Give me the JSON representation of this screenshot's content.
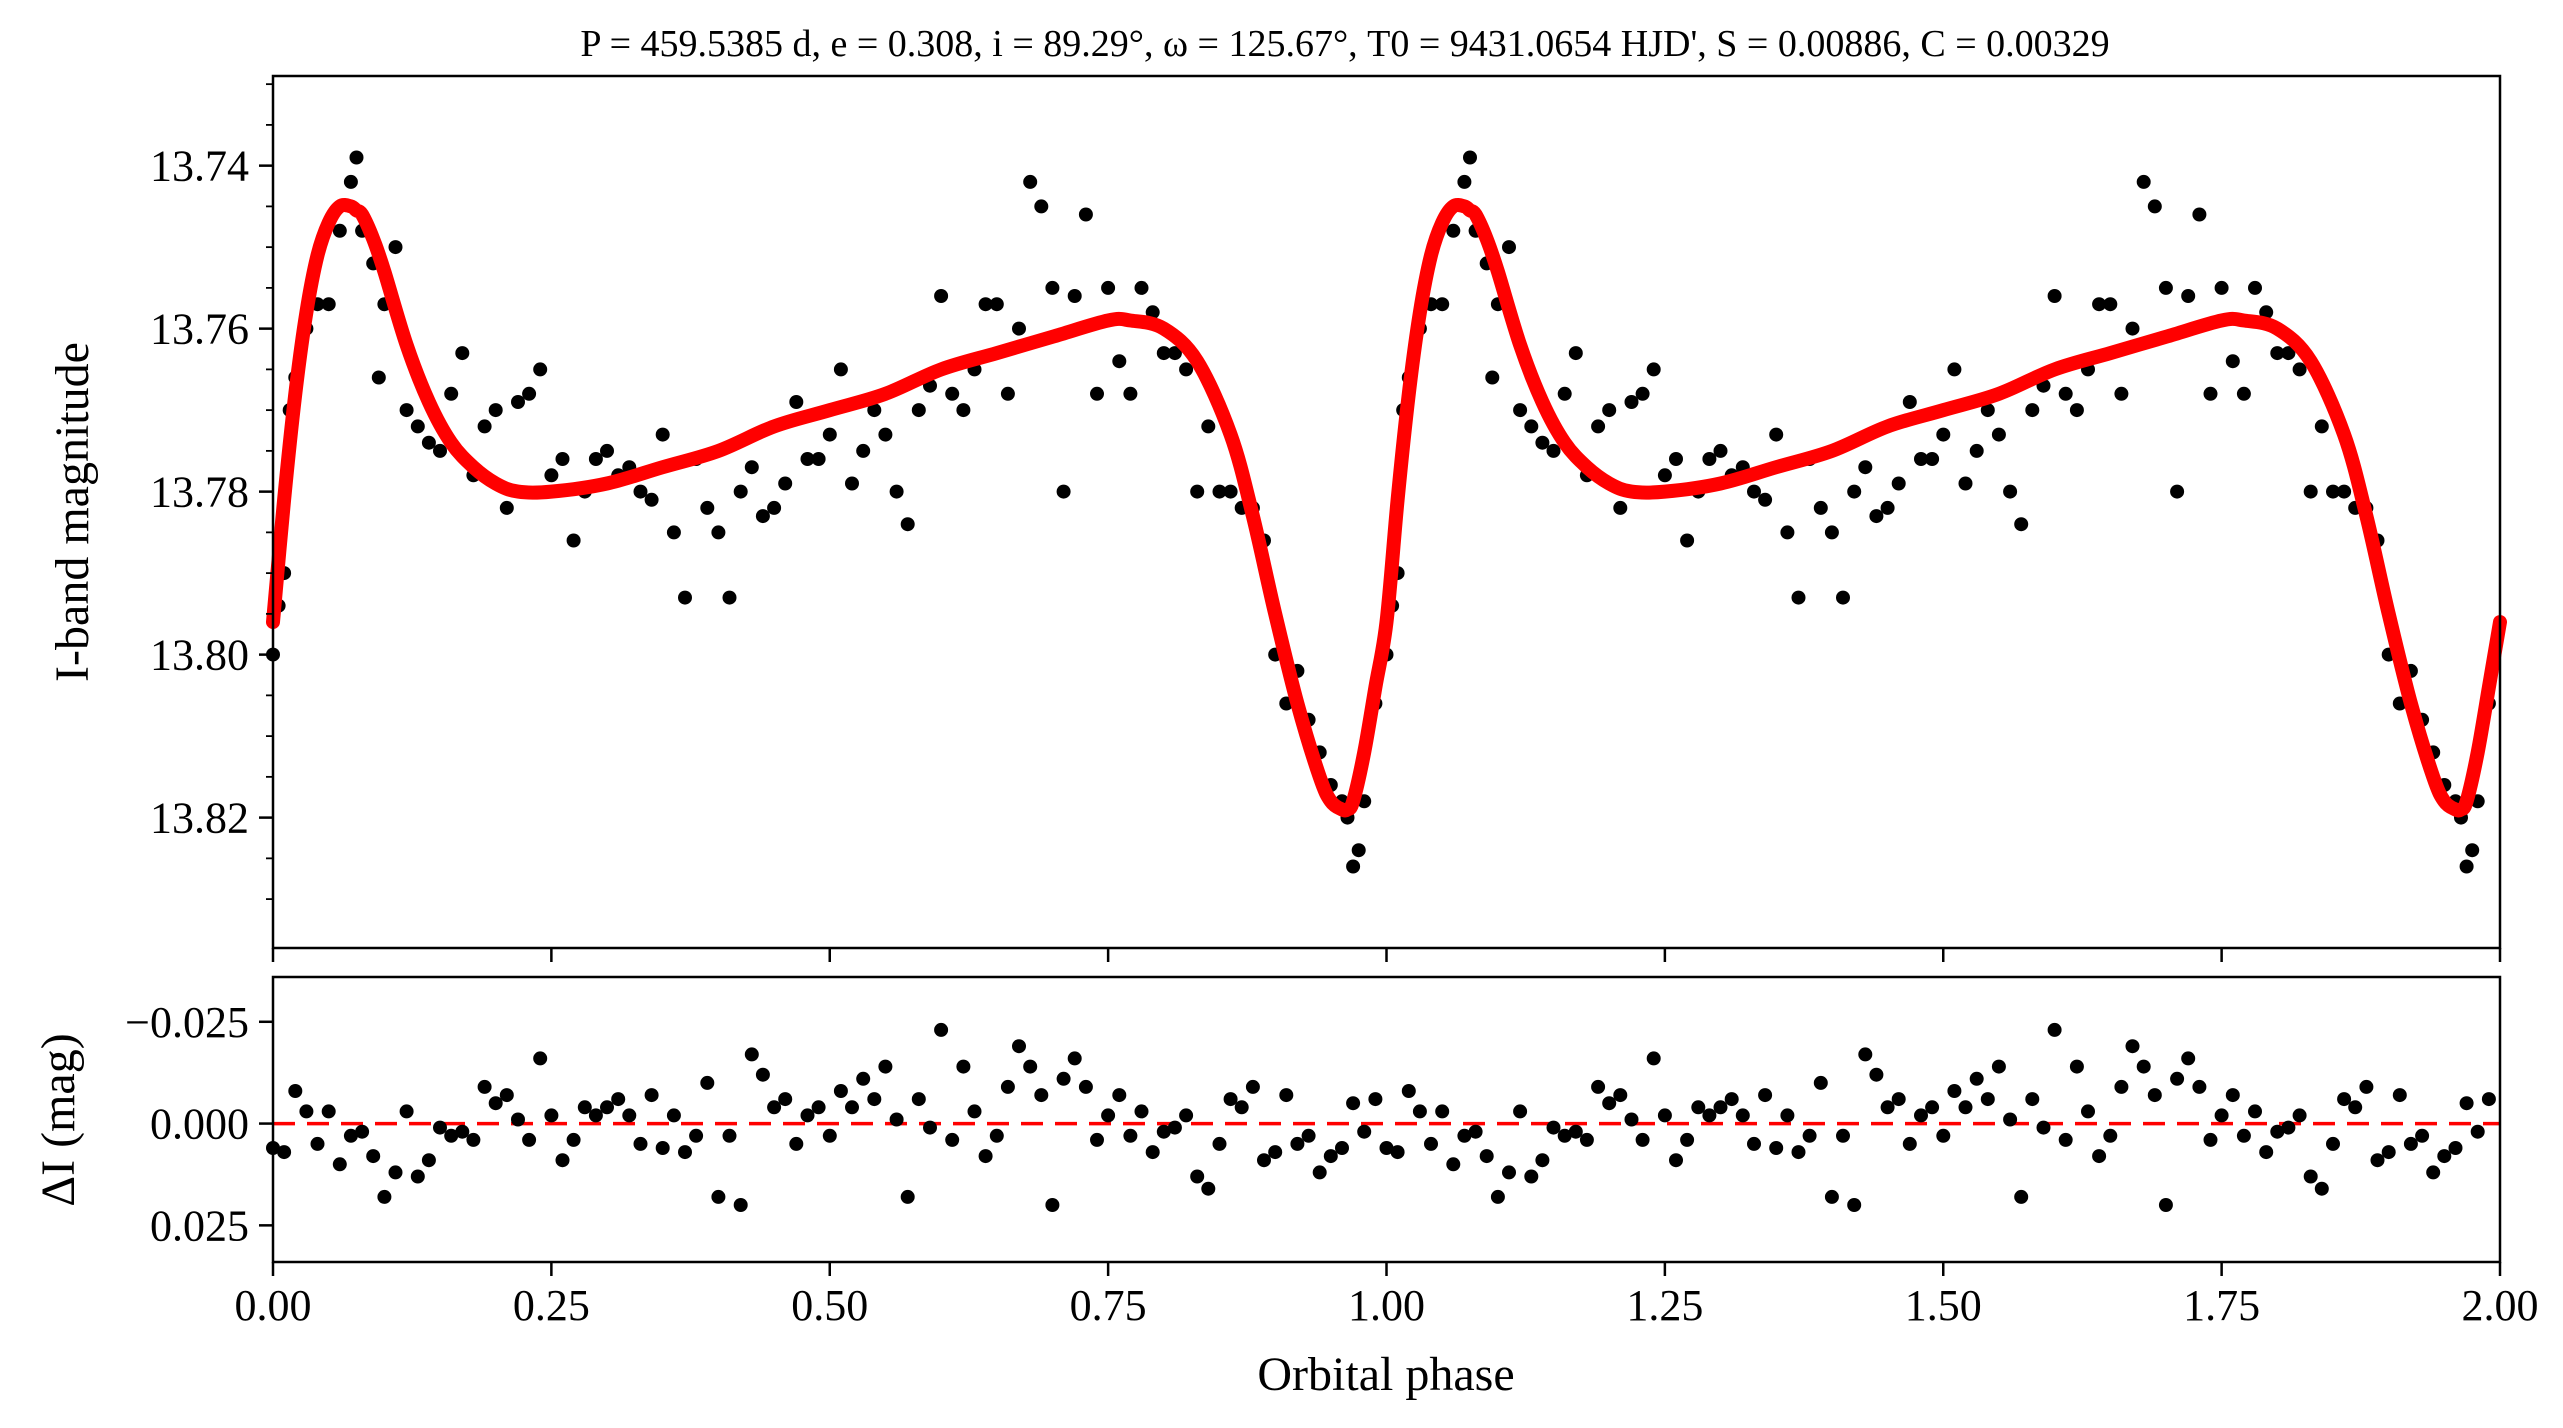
{
  "chart_data": [
    {
      "type": "scatter",
      "panel": "top",
      "title": "P = 459.5385 d, e = 0.308, i = 89.29°, ω = 125.67°, T0 = 9431.0654 HJD', S = 0.00886, C = 0.00329",
      "ylabel": "I-band magnitude",
      "xlabel": "",
      "xlim": [
        0.0,
        2.0
      ],
      "ylim": [
        13.836,
        13.729
      ],
      "y_inverted": true,
      "yticks": [
        "13.74",
        "13.76",
        "13.78",
        "13.80",
        "13.82"
      ],
      "yticks_values": [
        13.74,
        13.76,
        13.78,
        13.8,
        13.82
      ],
      "grid": false,
      "series": [
        {
          "kind": "points",
          "color": "#000000",
          "x": [
            0.0,
            0.005,
            0.01,
            0.015,
            0.02,
            0.03,
            0.04,
            0.05,
            0.06,
            0.07,
            0.075,
            0.08,
            0.09,
            0.095,
            0.1,
            0.11,
            0.12,
            0.13,
            0.14,
            0.15,
            0.16,
            0.17,
            0.18,
            0.19,
            0.2,
            0.21,
            0.22,
            0.23,
            0.24,
            0.25,
            0.26,
            0.27,
            0.28,
            0.29,
            0.3,
            0.31,
            0.32,
            0.33,
            0.34,
            0.35,
            0.36,
            0.37,
            0.38,
            0.39,
            0.4,
            0.41,
            0.42,
            0.43,
            0.44,
            0.45,
            0.46,
            0.47,
            0.48,
            0.49,
            0.5,
            0.51,
            0.52,
            0.53,
            0.54,
            0.55,
            0.56,
            0.57,
            0.58,
            0.59,
            0.6,
            0.61,
            0.62,
            0.63,
            0.64,
            0.65,
            0.66,
            0.67,
            0.68,
            0.69,
            0.7,
            0.71,
            0.72,
            0.73,
            0.74,
            0.75,
            0.76,
            0.77,
            0.78,
            0.79,
            0.8,
            0.81,
            0.82,
            0.83,
            0.84,
            0.85,
            0.86,
            0.87,
            0.88,
            0.89,
            0.9,
            0.91,
            0.92,
            0.93,
            0.94,
            0.95,
            0.96,
            0.965,
            0.97,
            0.975,
            0.98,
            0.99
          ],
          "y": [
            13.8,
            13.794,
            13.79,
            13.77,
            13.766,
            13.76,
            13.757,
            13.757,
            13.748,
            13.742,
            13.739,
            13.748,
            13.752,
            13.766,
            13.757,
            13.75,
            13.77,
            13.772,
            13.774,
            13.775,
            13.768,
            13.763,
            13.778,
            13.772,
            13.77,
            13.782,
            13.769,
            13.768,
            13.765,
            13.778,
            13.776,
            13.786,
            13.78,
            13.776,
            13.775,
            13.778,
            13.777,
            13.78,
            13.781,
            13.773,
            13.785,
            13.793,
            13.776,
            13.782,
            13.785,
            13.793,
            13.78,
            13.777,
            13.783,
            13.782,
            13.779,
            13.769,
            13.776,
            13.776,
            13.773,
            13.765,
            13.779,
            13.775,
            13.77,
            13.773,
            13.78,
            13.784,
            13.77,
            13.767,
            13.756,
            13.768,
            13.77,
            13.765,
            13.757,
            13.757,
            13.768,
            13.76,
            13.742,
            13.745,
            13.755,
            13.78,
            13.756,
            13.746,
            13.768,
            13.755,
            13.764,
            13.768,
            13.755,
            13.758,
            13.763,
            13.763,
            13.765,
            13.78,
            13.772,
            13.78,
            13.78,
            13.782,
            13.782,
            13.786,
            13.8,
            13.806,
            13.802,
            13.808,
            13.812,
            13.816,
            13.818,
            13.82,
            13.826,
            13.824,
            13.818,
            13.806
          ]
        },
        {
          "kind": "model",
          "color": "#ff0000",
          "x": [
            0.0,
            0.01,
            0.02,
            0.03,
            0.04,
            0.05,
            0.06,
            0.07,
            0.075,
            0.08,
            0.09,
            0.1,
            0.12,
            0.14,
            0.16,
            0.18,
            0.2,
            0.22,
            0.25,
            0.3,
            0.35,
            0.4,
            0.45,
            0.5,
            0.55,
            0.6,
            0.65,
            0.7,
            0.75,
            0.77,
            0.8,
            0.83,
            0.86,
            0.88,
            0.9,
            0.92,
            0.94,
            0.95,
            0.96,
            0.965,
            0.97,
            0.98,
            0.99,
            1.0
          ],
          "y": [
            13.796,
            13.781,
            13.768,
            13.758,
            13.751,
            13.747,
            13.745,
            13.745,
            13.7455,
            13.746,
            13.749,
            13.753,
            13.762,
            13.769,
            13.774,
            13.777,
            13.779,
            13.78,
            13.78,
            13.779,
            13.777,
            13.775,
            13.772,
            13.77,
            13.768,
            13.765,
            13.763,
            13.761,
            13.759,
            13.759,
            13.76,
            13.764,
            13.773,
            13.783,
            13.795,
            13.806,
            13.815,
            13.818,
            13.819,
            13.819,
            13.818,
            13.812,
            13.804,
            13.796
          ]
        }
      ]
    },
    {
      "type": "scatter",
      "panel": "bottom",
      "xlabel": "Orbital phase",
      "ylabel": "ΔI (mag)",
      "xlim": [
        0.0,
        2.0
      ],
      "ylim": [
        0.034,
        -0.036
      ],
      "y_inverted": true,
      "xticks": [
        "0.00",
        "0.25",
        "0.50",
        "0.75",
        "1.00",
        "1.25",
        "1.50",
        "1.75",
        "2.00"
      ],
      "xticks_values": [
        0.0,
        0.25,
        0.5,
        0.75,
        1.0,
        1.25,
        1.5,
        1.75,
        2.0
      ],
      "yticks": [
        "−0.025",
        "0.000",
        "0.025"
      ],
      "yticks_values": [
        -0.025,
        0.0,
        0.025
      ],
      "reference_line": {
        "y": 0.0,
        "style": "dashed",
        "color": "#ff0000"
      },
      "series": [
        {
          "kind": "points",
          "color": "#000000",
          "x": [
            0.0,
            0.01,
            0.02,
            0.03,
            0.04,
            0.05,
            0.06,
            0.07,
            0.08,
            0.09,
            0.1,
            0.11,
            0.12,
            0.13,
            0.14,
            0.15,
            0.16,
            0.17,
            0.18,
            0.19,
            0.2,
            0.21,
            0.22,
            0.23,
            0.24,
            0.25,
            0.26,
            0.27,
            0.28,
            0.29,
            0.3,
            0.31,
            0.32,
            0.33,
            0.34,
            0.35,
            0.36,
            0.37,
            0.38,
            0.39,
            0.4,
            0.41,
            0.42,
            0.43,
            0.44,
            0.45,
            0.46,
            0.47,
            0.48,
            0.49,
            0.5,
            0.51,
            0.52,
            0.53,
            0.54,
            0.55,
            0.56,
            0.57,
            0.58,
            0.59,
            0.6,
            0.61,
            0.62,
            0.63,
            0.64,
            0.65,
            0.66,
            0.67,
            0.68,
            0.69,
            0.7,
            0.71,
            0.72,
            0.73,
            0.74,
            0.75,
            0.76,
            0.77,
            0.78,
            0.79,
            0.8,
            0.81,
            0.82,
            0.83,
            0.84,
            0.85,
            0.86,
            0.87,
            0.88,
            0.89,
            0.9,
            0.91,
            0.92,
            0.93,
            0.94,
            0.95,
            0.96,
            0.97,
            0.98,
            0.99
          ],
          "y": [
            0.006,
            0.007,
            -0.008,
            -0.003,
            0.005,
            -0.003,
            0.01,
            0.003,
            0.002,
            0.008,
            0.018,
            0.012,
            -0.003,
            0.013,
            0.009,
            0.001,
            0.003,
            0.002,
            0.004,
            -0.009,
            -0.005,
            -0.007,
            -0.001,
            0.004,
            -0.016,
            -0.002,
            0.009,
            0.004,
            -0.004,
            -0.002,
            -0.004,
            -0.006,
            -0.002,
            0.005,
            -0.007,
            0.006,
            -0.002,
            0.007,
            0.003,
            -0.01,
            0.018,
            0.003,
            0.02,
            -0.017,
            -0.012,
            -0.004,
            -0.006,
            0.005,
            -0.002,
            -0.004,
            0.003,
            -0.008,
            -0.004,
            -0.011,
            -0.006,
            -0.014,
            -0.001,
            0.018,
            -0.006,
            0.001,
            -0.023,
            0.004,
            -0.014,
            -0.003,
            0.008,
            0.003,
            -0.009,
            -0.019,
            -0.014,
            -0.007,
            0.02,
            -0.011,
            -0.016,
            -0.009,
            0.004,
            -0.002,
            -0.007,
            0.003,
            -0.003,
            0.007,
            0.002,
            0.001,
            -0.002,
            0.013,
            0.016,
            0.005,
            -0.006,
            -0.004,
            -0.009,
            0.009,
            0.007,
            -0.007,
            0.005,
            0.003,
            0.012,
            0.008,
            0.006,
            -0.005,
            0.002,
            -0.006
          ]
        }
      ]
    }
  ]
}
